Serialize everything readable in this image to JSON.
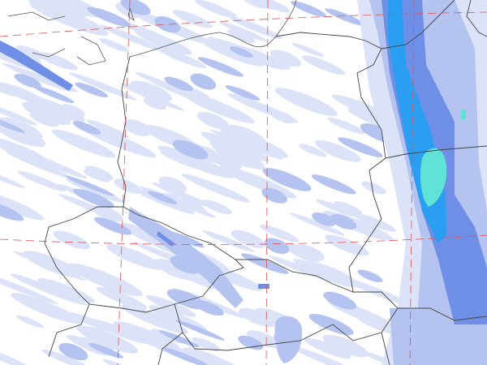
{
  "map": {
    "background": "#ffffff",
    "colors": {
      "precip_level_1": "#dce3f8",
      "precip_level_2": "#b4c3f0",
      "precip_level_3": "#6f8fe6",
      "precip_level_4": "#2a9ef0",
      "precip_level_5": "#5fe3d6",
      "border": "#444444",
      "graticule": "#e05050"
    }
  }
}
